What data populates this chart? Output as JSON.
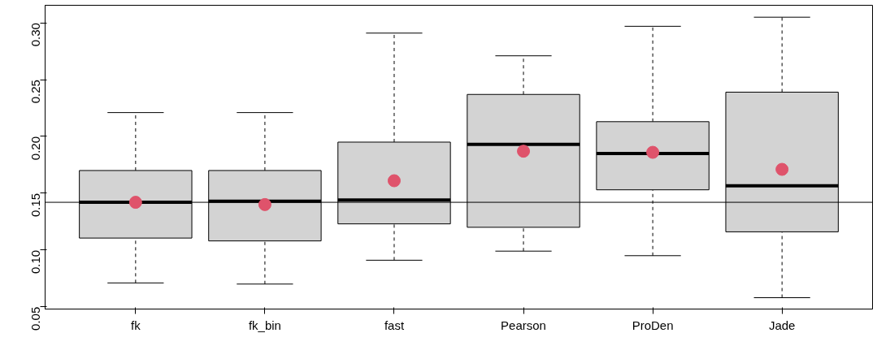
{
  "chart_data": {
    "type": "box",
    "categories": [
      "fk",
      "fk_bin",
      "fast",
      "Pearson",
      "ProDen",
      "Jade"
    ],
    "boxes": [
      {
        "low": 0.071,
        "q1": 0.1105,
        "median": 0.142,
        "q3": 0.17,
        "high": 0.221
      },
      {
        "low": 0.07,
        "q1": 0.108,
        "median": 0.143,
        "q3": 0.17,
        "high": 0.221
      },
      {
        "low": 0.091,
        "q1": 0.123,
        "median": 0.144,
        "q3": 0.195,
        "high": 0.291
      },
      {
        "low": 0.099,
        "q1": 0.12,
        "median": 0.193,
        "q3": 0.237,
        "high": 0.271
      },
      {
        "low": 0.095,
        "q1": 0.153,
        "median": 0.185,
        "q3": 0.213,
        "high": 0.297
      },
      {
        "low": 0.058,
        "q1": 0.116,
        "median": 0.1565,
        "q3": 0.239,
        "high": 0.305
      }
    ],
    "color": "#d3d3d3",
    "series": [
      {
        "type": "scatter",
        "x": [
          "fk",
          "fk_bin",
          "fast",
          "Pearson",
          "ProDen",
          "Jade"
        ],
        "values": [
          0.142,
          0.14,
          0.161,
          0.187,
          0.186,
          0.171
        ],
        "color": "#df536b"
      }
    ],
    "ylim": [
      0.048,
      0.3155
    ],
    "yticks": [
      {
        "value": 0.05,
        "label": "0.05"
      },
      {
        "value": 0.1,
        "label": "0.10"
      },
      {
        "value": 0.15,
        "label": "0.15"
      },
      {
        "value": 0.2,
        "label": "0.20"
      },
      {
        "value": 0.25,
        "label": "0.25"
      },
      {
        "value": 0.3,
        "label": "0.30"
      }
    ],
    "ref_lines": [
      {
        "axis": "y",
        "value": 0.142,
        "color": "#000000"
      }
    ],
    "grid": false
  }
}
